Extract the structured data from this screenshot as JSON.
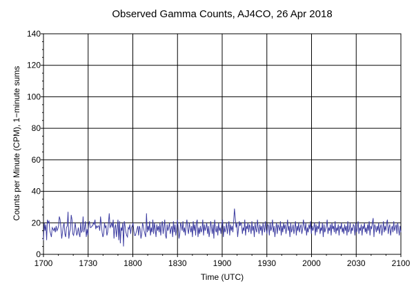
{
  "chart_data": {
    "type": "line",
    "title": "Observed Gamma Counts, AJ4CO, 26 Apr 2018",
    "xlabel": "Time (UTC)",
    "ylabel": "Counts per Minute (CPM), 1−minute sums",
    "xlim": [
      0,
      240
    ],
    "ylim": [
      0,
      140
    ],
    "x_ticks": [
      {
        "value": 0,
        "label": "1700"
      },
      {
        "value": 30,
        "label": "1730"
      },
      {
        "value": 60,
        "label": "1800"
      },
      {
        "value": 90,
        "label": "1830"
      },
      {
        "value": 120,
        "label": "1900"
      },
      {
        "value": 150,
        "label": "1930"
      },
      {
        "value": 180,
        "label": "2000"
      },
      {
        "value": 210,
        "label": "2030"
      },
      {
        "value": 240,
        "label": "2100"
      }
    ],
    "y_ticks": [
      0,
      20,
      40,
      60,
      80,
      100,
      120,
      140
    ],
    "grid": true,
    "line_color": "#3c3ca0",
    "series": [
      {
        "values": [
          9,
          20,
          15,
          19,
          9,
          22,
          20,
          21,
          15,
          13,
          11,
          17,
          16,
          15,
          17,
          14,
          18,
          15,
          16,
          18,
          24,
          22,
          17,
          10,
          14,
          18,
          20,
          13,
          11,
          17,
          18,
          27,
          10,
          14,
          16,
          25,
          22,
          13,
          12,
          15,
          20,
          16,
          12,
          14,
          17,
          13,
          11,
          20,
          14,
          15,
          24,
          14,
          17,
          21,
          11,
          16,
          12,
          19,
          21,
          17,
          17,
          18,
          18,
          20,
          19,
          22,
          16,
          18,
          17,
          18,
          18,
          15,
          24,
          19,
          14,
          11,
          13,
          20,
          17,
          18,
          12,
          14,
          20,
          26,
          17,
          18,
          20,
          17,
          22,
          10,
          17,
          19,
          11,
          16,
          22,
          9,
          21,
          7,
          17,
          15,
          20,
          5,
          21,
          18,
          14,
          12,
          11,
          17,
          16,
          19,
          13,
          17,
          18,
          20,
          15,
          12,
          12,
          14,
          16,
          18,
          12,
          18,
          16,
          10,
          13,
          20,
          18,
          15,
          13,
          11,
          26,
          14,
          18,
          15,
          21,
          12,
          17,
          14,
          22,
          13,
          20,
          16,
          11,
          19,
          15,
          18,
          14,
          20,
          12,
          18,
          21,
          13,
          17,
          22,
          12,
          10,
          19,
          15,
          17,
          20,
          13,
          16,
          18,
          11,
          21,
          14,
          19,
          12,
          16,
          22,
          17,
          10,
          13,
          20,
          18,
          15,
          21,
          14,
          17,
          12,
          19,
          22,
          16,
          13,
          20,
          17,
          14,
          18,
          11,
          21,
          15,
          19,
          12,
          20,
          22,
          11,
          17,
          13,
          18,
          14,
          16,
          22,
          12,
          19,
          15,
          17,
          20,
          13,
          18,
          11,
          15,
          21,
          17,
          13,
          19,
          10,
          22,
          16,
          14,
          18,
          12,
          20,
          15,
          17,
          13,
          19,
          22,
          11,
          18,
          14,
          16,
          20,
          13,
          17,
          21,
          12,
          19,
          15,
          18,
          14,
          21,
          29,
          23,
          17,
          20,
          11,
          16,
          21,
          18,
          20,
          19,
          13,
          17,
          15,
          22,
          12,
          18,
          16,
          20,
          14,
          19,
          17,
          13,
          21,
          15,
          18,
          11,
          20,
          16,
          14,
          22,
          17,
          13,
          19,
          15,
          18,
          12,
          20,
          17,
          14,
          21,
          16,
          13,
          19,
          18,
          12,
          20,
          15,
          17,
          22,
          14,
          18,
          11,
          16,
          20,
          13,
          19,
          17,
          15,
          21,
          12,
          18,
          14,
          20,
          16,
          19,
          13,
          17,
          22,
          15,
          18,
          11,
          20,
          14,
          16,
          19,
          13,
          17,
          21,
          12,
          18,
          15,
          20,
          14,
          17,
          19,
          13,
          16,
          22,
          18,
          15,
          20,
          12,
          17,
          14,
          19,
          16,
          21,
          13,
          18,
          15,
          17,
          20,
          12,
          19,
          14,
          18,
          16,
          21,
          13,
          17,
          15,
          20,
          11,
          19,
          14,
          16,
          18,
          22,
          13,
          17,
          15,
          19,
          12,
          20,
          16,
          18,
          14,
          21,
          13,
          17,
          15,
          19,
          12,
          18,
          16,
          20,
          14,
          17,
          13,
          19,
          15,
          18,
          12,
          21,
          14,
          16,
          20,
          13,
          17,
          15,
          19,
          18,
          12,
          20,
          14,
          16,
          21,
          13,
          17,
          15,
          19,
          12,
          18,
          16,
          20,
          14,
          17,
          13,
          19,
          15,
          21,
          12,
          18,
          16,
          20,
          23,
          11,
          19,
          17,
          14,
          18,
          15,
          20,
          13,
          17,
          19,
          12,
          16,
          21,
          14,
          18,
          15,
          20,
          22,
          13,
          17,
          19,
          12,
          16,
          18,
          14,
          21,
          15,
          17,
          19,
          13,
          20,
          16,
          12,
          18,
          14
        ]
      }
    ]
  }
}
